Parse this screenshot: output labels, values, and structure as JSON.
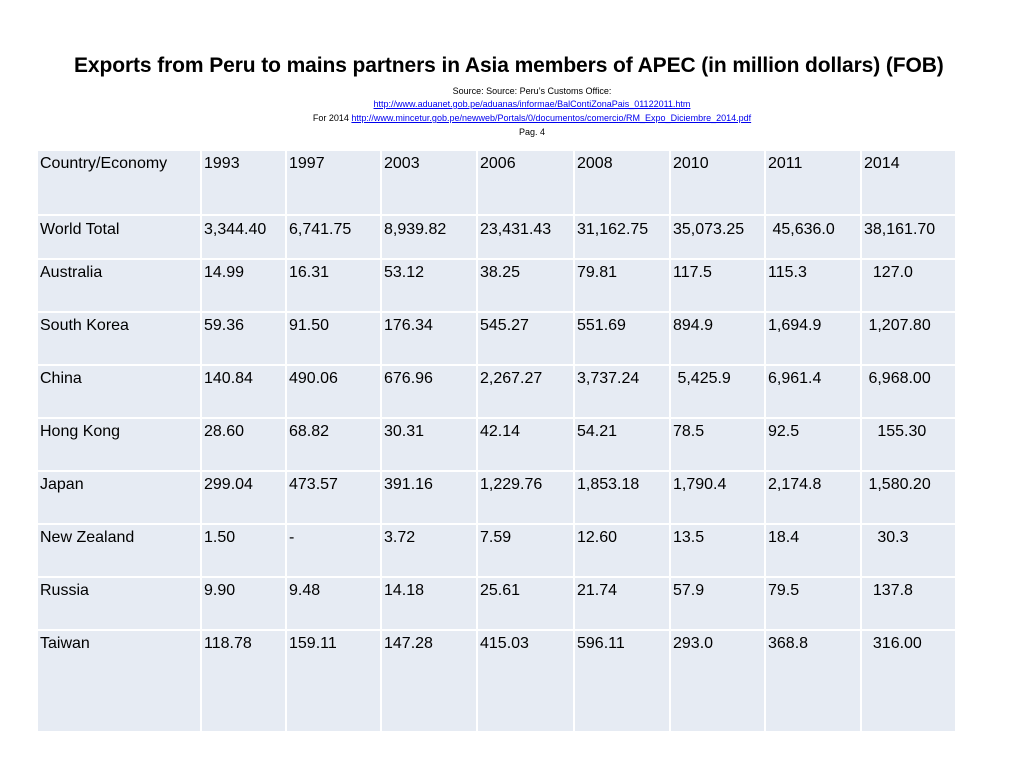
{
  "title": "Exports from Peru to mains partners in Asia members of APEC (in million dollars) (FOB)",
  "source": {
    "line1": "Source: Source: Peru’s Customs Office:",
    "link1": "http://www.aduanet.gob.pe/aduanas/informae/BalContiZonaPais_01122011.htm",
    "line3_prefix": "For 2014 ",
    "link2": "http://www.mincetur.gob.pe/newweb/Portals/0/documentos/comercio/RM_Expo_Diciembre_2014.pdf",
    "page": "Pag. 4"
  },
  "table": {
    "headers": [
      "Country/Economy",
      "1993",
      "1997",
      "2003",
      "2006",
      "2008",
      "2010",
      "2011",
      "2014"
    ],
    "rows": [
      [
        "World Total",
        "3,344.40",
        "6,741.75",
        "8,939.82",
        "23,431.43",
        "31,162.75",
        "35,073.25",
        " 45,636.0",
        "38,161.70"
      ],
      [
        "Australia",
        "14.99",
        "16.31",
        "53.12",
        "38.25",
        "79.81",
        "117.5",
        "115.3",
        "  127.0"
      ],
      [
        "South Korea",
        "59.36",
        "91.50",
        "176.34",
        "545.27",
        "551.69",
        "894.9",
        "1,694.9",
        " 1,207.80"
      ],
      [
        "China",
        "140.84",
        "490.06",
        "676.96",
        "2,267.27",
        "3,737.24",
        " 5,425.9",
        "6,961.4",
        " 6,968.00"
      ],
      [
        "Hong Kong",
        "28.60",
        "68.82",
        "30.31",
        "42.14",
        "54.21",
        "78.5",
        "92.5",
        "   155.30"
      ],
      [
        "Japan",
        "299.04",
        "473.57",
        "391.16",
        "1,229.76",
        "1,853.18",
        "1,790.4",
        "2,174.8",
        " 1,580.20"
      ],
      [
        "New Zealand",
        "1.50",
        "-",
        "3.72",
        "7.59",
        "12.60",
        "13.5",
        "18.4",
        "   30.3"
      ],
      [
        "Russia",
        "9.90",
        "9.48",
        "14.18",
        "25.61",
        "21.74",
        "57.9",
        "79.5",
        "  137.8"
      ],
      [
        "Taiwan",
        "118.78",
        "159.11",
        "147.28",
        "415.03",
        "596.11",
        "293.0",
        "368.8",
        "  316.00"
      ]
    ]
  }
}
